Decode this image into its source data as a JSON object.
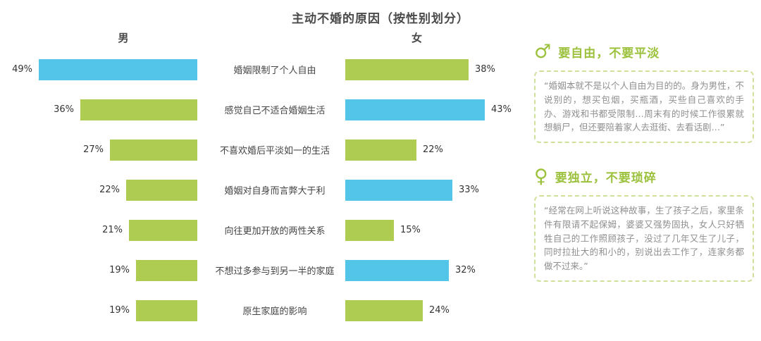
{
  "chart_data": {
    "type": "bar",
    "title": "主动不婚的原因（按性别划分）",
    "group_labels": {
      "male": "男",
      "female": "女"
    },
    "categories": [
      "婚姻限制了个人自由",
      "感觉自己不适合婚姻生活",
      "不喜欢婚后平淡如一的生活",
      "婚姻对自身而言弊大于利",
      "向往更加开放的两性关系",
      "不想过多参与到另一半的家庭",
      "原生家庭的影响"
    ],
    "series": [
      {
        "name": "男",
        "values": [
          49,
          36,
          27,
          22,
          21,
          19,
          19
        ],
        "bar_colors": [
          "blue",
          "green",
          "green",
          "green",
          "green",
          "green",
          "green"
        ]
      },
      {
        "name": "女",
        "values": [
          38,
          43,
          22,
          33,
          15,
          32,
          24
        ],
        "bar_colors": [
          "green",
          "blue",
          "green",
          "blue",
          "green",
          "blue",
          "green"
        ]
      }
    ],
    "value_suffix": "%",
    "xlim": [
      0,
      50
    ],
    "legend_position": "none",
    "grid": false
  },
  "colors": {
    "blue": "#52c5e9",
    "green": "#aecb52",
    "accent_green": "#9cc13d"
  },
  "icon_glyphs": {
    "male": "♂",
    "female": "♀"
  },
  "panels": [
    {
      "heading": "要自由，不要平淡",
      "quote": "“婚姻本就不是以个人自由为目的的。身为男性，不说别的，想买包烟，买瓶酒，买些自己喜欢的手办、游戏和书都受限制…周末有的时候工作很累就想躺尸，但还要陪着家人去逛街、去看话剧…”"
    },
    {
      "heading": "要独立，不要琐碎",
      "quote": "“经常在网上听说这种故事，生了孩子之后，家里条件有限请不起保姆，婆婆又强势固执，女人只好牺牲自己的工作照顾孩子，没过了几年又生了儿子，同时拉扯大的和小的，别说出去工作了，连家务都做不过来。”"
    }
  ]
}
